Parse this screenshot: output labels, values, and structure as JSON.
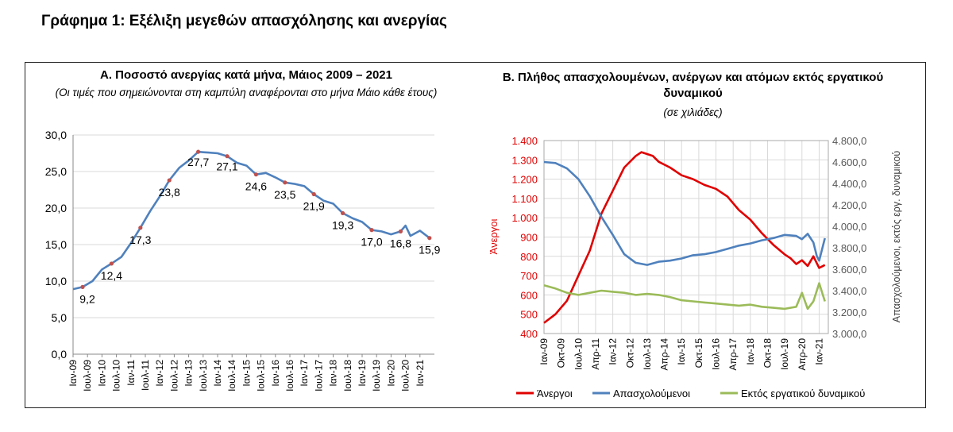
{
  "page": {
    "title": "Γράφημα 1: Εξέλιξη μεγεθών απασχόλησης και ανεργίας"
  },
  "chart_data": [
    {
      "type": "line",
      "title": "Α. Ποσοστό ανεργίας κατά μήνα, Μάιος 2009 – 2021",
      "subtitle": "(Οι τιμές που σημειώνονται στη καμπύλη αναφέρονται στο μήνα Μάιο κάθε έτους)",
      "ylim": [
        0,
        30
      ],
      "yticks": [
        "0,0",
        "5,0",
        "10,0",
        "15,0",
        "20,0",
        "25,0",
        "30,0"
      ],
      "xticks": [
        "Ιαν-09",
        "Ιουλ-09",
        "Ιαν-10",
        "Ιουλ-10",
        "Ιαν-11",
        "Ιουλ-11",
        "Ιαν-12",
        "Ιουλ-12",
        "Ιαν-13",
        "Ιουλ-13",
        "Ιαν-14",
        "Ιουλ-14",
        "Ιαν-15",
        "Ιουλ-15",
        "Ιαν-16",
        "Ιουλ-16",
        "Ιαν-17",
        "Ιουλ-17",
        "Ιαν-18",
        "Ιουλ-18",
        "Ιαν-19",
        "Ιουλ-19",
        "Ιαν-20",
        "Ιουλ-20",
        "Ιαν-21"
      ],
      "grid": true,
      "color": "#4F81BD",
      "marker_color": "#C0504D",
      "series": [
        {
          "x": [
            2009.0,
            2009.33,
            2009.67,
            2010.0,
            2010.33,
            2010.67,
            2011.0,
            2011.33,
            2011.67,
            2012.0,
            2012.33,
            2012.67,
            2013.0,
            2013.33,
            2013.67,
            2014.0,
            2014.33,
            2014.67,
            2015.0,
            2015.33,
            2015.67,
            2016.0,
            2016.33,
            2016.67,
            2017.0,
            2017.33,
            2017.67,
            2018.0,
            2018.33,
            2018.67,
            2019.0,
            2019.33,
            2019.67,
            2020.0,
            2020.33,
            2020.5,
            2020.67,
            2021.0,
            2021.33
          ],
          "values": [
            8.9,
            9.2,
            10.0,
            11.6,
            12.4,
            13.3,
            15.2,
            17.3,
            19.6,
            21.6,
            23.8,
            25.5,
            26.5,
            27.7,
            27.6,
            27.5,
            27.1,
            26.2,
            25.8,
            24.6,
            24.8,
            24.2,
            23.5,
            23.3,
            23.0,
            21.9,
            21.0,
            20.6,
            19.3,
            18.6,
            18.1,
            17.0,
            16.8,
            16.4,
            16.8,
            17.6,
            16.2,
            16.9,
            15.9
          ]
        }
      ],
      "annotations": [
        {
          "x": 2009.33,
          "y": 9.2,
          "label": "9,2"
        },
        {
          "x": 2010.33,
          "y": 12.4,
          "label": "12,4"
        },
        {
          "x": 2011.33,
          "y": 17.3,
          "label": "17,3"
        },
        {
          "x": 2012.33,
          "y": 23.8,
          "label": "23,8"
        },
        {
          "x": 2013.33,
          "y": 27.7,
          "label": "27,7"
        },
        {
          "x": 2014.33,
          "y": 27.1,
          "label": "27,1"
        },
        {
          "x": 2015.33,
          "y": 24.6,
          "label": "24,6"
        },
        {
          "x": 2016.33,
          "y": 23.5,
          "label": "23,5"
        },
        {
          "x": 2017.33,
          "y": 21.9,
          "label": "21,9"
        },
        {
          "x": 2018.33,
          "y": 19.3,
          "label": "19,3"
        },
        {
          "x": 2019.33,
          "y": 17.0,
          "label": "17,0"
        },
        {
          "x": 2020.33,
          "y": 16.8,
          "label": "16,8"
        },
        {
          "x": 2021.33,
          "y": 15.9,
          "label": "15,9"
        }
      ]
    },
    {
      "type": "line",
      "title": "Β. Πλήθος απασχολουμένων, ανέργων και ατόμων εκτός εργατικού δυναμικού",
      "subtitle": "(σε χιλιάδες)",
      "ylabel_left": "Άνεργοι",
      "ylabel_right": "Απασχολούμενοι, εκτός εργ. δυναμικού",
      "ylim_left": [
        400,
        1400
      ],
      "ylim_right": [
        3000,
        4800
      ],
      "yticks_left": [
        "400",
        "500",
        "600",
        "700",
        "800",
        "900",
        "1.000",
        "1.100",
        "1.200",
        "1.300",
        "1.400"
      ],
      "yticks_right": [
        "3.000,0",
        "3.200,0",
        "3.400,0",
        "3.600,0",
        "3.800,0",
        "4.000,0",
        "4.200,0",
        "4.400,0",
        "4.600,0",
        "4.800,0"
      ],
      "xticks": [
        "Ιαν-09",
        "Οκτ-09",
        "Ιουλ-10",
        "Απρ-11",
        "Ιαν-12",
        "Οκτ-12",
        "Ιουλ-13",
        "Απρ-14",
        "Ιαν-15",
        "Οκτ-15",
        "Ιουλ-16",
        "Απρ-17",
        "Ιαν-18",
        "Οκτ-18",
        "Ιουλ-19",
        "Απρ-20",
        "Ιαν-21"
      ],
      "grid": true,
      "series": [
        {
          "name": "Άνεργοι",
          "axis": "left",
          "color": "#E00000",
          "x": [
            2009.0,
            2009.5,
            2010.0,
            2010.5,
            2011.0,
            2011.5,
            2012.0,
            2012.5,
            2013.0,
            2013.25,
            2013.5,
            2013.75,
            2014.0,
            2014.5,
            2015.0,
            2015.5,
            2016.0,
            2016.5,
            2017.0,
            2017.5,
            2018.0,
            2018.5,
            2019.0,
            2019.5,
            2019.75,
            2020.0,
            2020.25,
            2020.5,
            2020.75,
            2021.0,
            2021.25
          ],
          "values": [
            455,
            500,
            570,
            700,
            830,
            1020,
            1140,
            1260,
            1320,
            1340,
            1330,
            1320,
            1290,
            1260,
            1220,
            1200,
            1170,
            1150,
            1110,
            1040,
            990,
            920,
            860,
            810,
            790,
            760,
            780,
            750,
            800,
            740,
            755
          ]
        },
        {
          "name": "Απασχολούμενοι",
          "axis": "right",
          "color": "#4F81BD",
          "x": [
            2009.0,
            2009.5,
            2010.0,
            2010.5,
            2011.0,
            2011.5,
            2012.0,
            2012.5,
            2013.0,
            2013.5,
            2014.0,
            2014.5,
            2015.0,
            2015.5,
            2016.0,
            2016.5,
            2017.0,
            2017.5,
            2018.0,
            2018.5,
            2019.0,
            2019.5,
            2020.0,
            2020.25,
            2020.5,
            2020.75,
            2020.9,
            2021.0,
            2021.25
          ],
          "values": [
            4600,
            4590,
            4540,
            4440,
            4280,
            4090,
            3920,
            3740,
            3660,
            3640,
            3670,
            3680,
            3700,
            3730,
            3740,
            3760,
            3790,
            3820,
            3840,
            3870,
            3890,
            3920,
            3910,
            3880,
            3930,
            3850,
            3720,
            3680,
            3890
          ]
        },
        {
          "name": "Εκτός εργατικού δυναμικού",
          "axis": "right",
          "color": "#9BBB59",
          "x": [
            2009.0,
            2009.5,
            2010.0,
            2010.5,
            2011.0,
            2011.5,
            2012.0,
            2012.5,
            2013.0,
            2013.5,
            2014.0,
            2014.5,
            2015.0,
            2015.5,
            2016.0,
            2016.5,
            2017.0,
            2017.5,
            2018.0,
            2018.5,
            2019.0,
            2019.5,
            2020.0,
            2020.25,
            2020.5,
            2020.75,
            2021.0,
            2021.25
          ],
          "values": [
            3450,
            3420,
            3380,
            3360,
            3380,
            3400,
            3390,
            3380,
            3360,
            3370,
            3360,
            3340,
            3310,
            3300,
            3290,
            3280,
            3270,
            3260,
            3270,
            3250,
            3240,
            3230,
            3250,
            3380,
            3230,
            3300,
            3470,
            3300
          ]
        }
      ],
      "legend_position": "bottom"
    }
  ]
}
